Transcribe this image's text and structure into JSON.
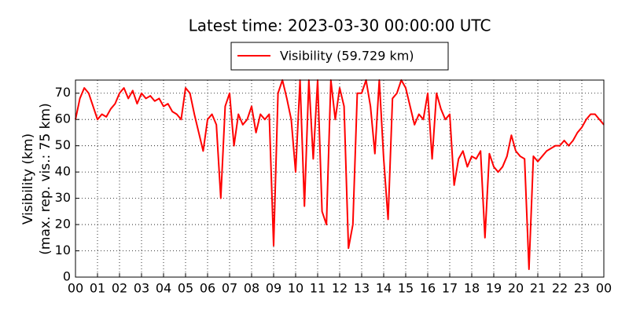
{
  "chart_data": {
    "type": "line",
    "title": "Latest time: 2023-03-30 00:00:00 UTC",
    "y_label": [
      "Visibility (km)",
      "(max. rep. vis.: 75 km)"
    ],
    "x": [
      0,
      0.2,
      0.4,
      0.6,
      0.8,
      1,
      1.2,
      1.4,
      1.6,
      1.8,
      2,
      2.2,
      2.4,
      2.6,
      2.8,
      3,
      3.2,
      3.4,
      3.6,
      3.8,
      4,
      4.2,
      4.4,
      4.6,
      4.8,
      5,
      5.2,
      5.4,
      5.6,
      5.8,
      6,
      6.2,
      6.4,
      6.6,
      6.8,
      7,
      7.2,
      7.4,
      7.6,
      7.8,
      8,
      8.2,
      8.4,
      8.6,
      8.8,
      9,
      9.2,
      9.4,
      9.6,
      9.8,
      10,
      10.2,
      10.4,
      10.6,
      10.8,
      11,
      11.2,
      11.4,
      11.6,
      11.8,
      12,
      12.2,
      12.4,
      12.6,
      12.8,
      13,
      13.2,
      13.4,
      13.6,
      13.8,
      14,
      14.2,
      14.4,
      14.6,
      14.8,
      15,
      15.2,
      15.4,
      15.6,
      15.8,
      16,
      16.2,
      16.4,
      16.6,
      16.8,
      17,
      17.2,
      17.4,
      17.6,
      17.8,
      18,
      18.2,
      18.4,
      18.6,
      18.8,
      19,
      19.2,
      19.4,
      19.6,
      19.8,
      20,
      20.2,
      20.4,
      20.6,
      20.8,
      21,
      21.2,
      21.4,
      21.6,
      21.8,
      22,
      22.2,
      22.4,
      22.6,
      22.8,
      23,
      23.2,
      23.4,
      23.6,
      23.8,
      24
    ],
    "series": [
      {
        "name": "Visibility (59.729 km)",
        "color": "#ff0000",
        "values": [
          60,
          68,
          72,
          70,
          65,
          60,
          62,
          61,
          64,
          66,
          70,
          72,
          68,
          71,
          66,
          70,
          68,
          69,
          67,
          68,
          65,
          66,
          63,
          62,
          60,
          72,
          70,
          62,
          55,
          48,
          60,
          62,
          58,
          30,
          65,
          70,
          50,
          62,
          58,
          60,
          65,
          55,
          62,
          60,
          62,
          12,
          70,
          75,
          68,
          60,
          40,
          75,
          27,
          75,
          45,
          75,
          25,
          20,
          75,
          60,
          72,
          65,
          11,
          20,
          70,
          70,
          75,
          65,
          47,
          75,
          45,
          22,
          68,
          70,
          75,
          72,
          65,
          58,
          62,
          60,
          70,
          45,
          70,
          64,
          60,
          62,
          35,
          45,
          48,
          42,
          46,
          45,
          48,
          15,
          47,
          42,
          40,
          42,
          46,
          54,
          48,
          46,
          45,
          3,
          46,
          44,
          46,
          48,
          49,
          50,
          50,
          52,
          50,
          52,
          55,
          57,
          60,
          62,
          62,
          60,
          58
        ]
      }
    ],
    "xlim": [
      0,
      24
    ],
    "ylim": [
      0,
      75
    ],
    "xticks": [
      {
        "value": 0,
        "label": "00"
      },
      {
        "value": 1,
        "label": "01"
      },
      {
        "value": 2,
        "label": "02"
      },
      {
        "value": 3,
        "label": "03"
      },
      {
        "value": 4,
        "label": "04"
      },
      {
        "value": 5,
        "label": "05"
      },
      {
        "value": 6,
        "label": "06"
      },
      {
        "value": 7,
        "label": "07"
      },
      {
        "value": 8,
        "label": "08"
      },
      {
        "value": 9,
        "label": "09"
      },
      {
        "value": 10,
        "label": "10"
      },
      {
        "value": 11,
        "label": "11"
      },
      {
        "value": 12,
        "label": "12"
      },
      {
        "value": 13,
        "label": "13"
      },
      {
        "value": 14,
        "label": "14"
      },
      {
        "value": 15,
        "label": "15"
      },
      {
        "value": 16,
        "label": "16"
      },
      {
        "value": 17,
        "label": "17"
      },
      {
        "value": 18,
        "label": "18"
      },
      {
        "value": 19,
        "label": "19"
      },
      {
        "value": 20,
        "label": "20"
      },
      {
        "value": 21,
        "label": "21"
      },
      {
        "value": 22,
        "label": "22"
      },
      {
        "value": 23,
        "label": "23"
      },
      {
        "value": 24,
        "label": "00"
      }
    ],
    "yticks": [
      0,
      10,
      20,
      30,
      40,
      50,
      60,
      70
    ],
    "grid": true
  }
}
